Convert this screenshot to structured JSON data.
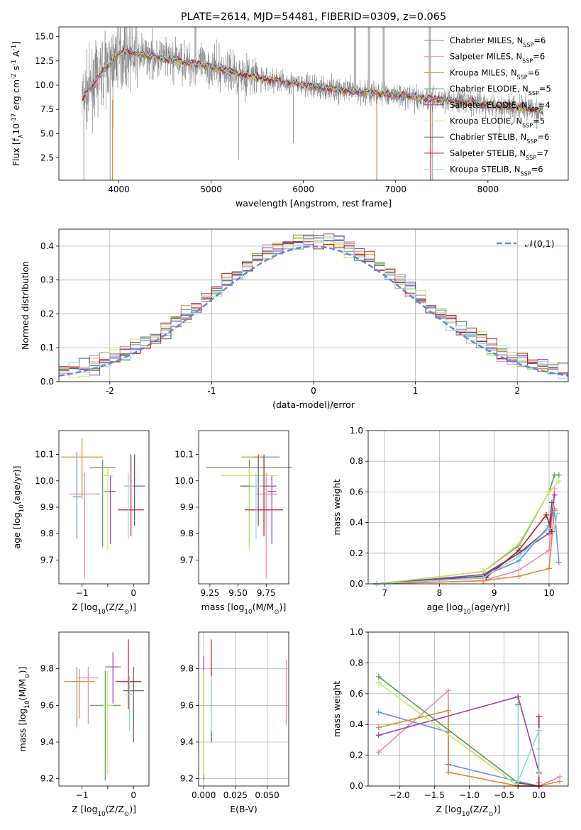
{
  "colors": {
    "Chabrier MILES": "#6a8fdc",
    "Salpeter MILES": "#e689b8",
    "Kroupa MILES": "#e08a2a",
    "Chabrier ELODIE": "#5a9a5a",
    "Salpeter ELODIE": "#9b3fb5",
    "Kroupa ELODIE": "#c8e65a",
    "Chabrier STELIB": "#5a5a5a",
    "Salpeter STELIB": "#c0141e",
    "Kroupa STELIB": "#8fd8e0",
    "gaussian": "#5b8ad8",
    "spectrum": "#808080"
  },
  "chart_data": [
    {
      "id": "spectrum",
      "type": "line",
      "title": "PLATE=2614, MJD=54481, FIBERID=0309, z=0.065",
      "xlabel": "wavelength [Angstrom, rest frame]",
      "ylabel": "Flux [f$_\\lambda$10$^{-17}$ erg cm$^{-2}$ s$^{-1}$ A$^{-1}$]",
      "xlim": [
        3350,
        8870
      ],
      "ylim": [
        0.2,
        16.0
      ],
      "xticks": [
        4000,
        5000,
        6000,
        7000,
        8000
      ],
      "yticks": [
        2.5,
        5.0,
        7.5,
        10.0,
        12.5,
        15.0
      ],
      "legend_position": "upper right",
      "legend": [
        {
          "name": "Chabrier MILES",
          "nssp": "6"
        },
        {
          "name": "Salpeter MILES",
          "nssp": "6"
        },
        {
          "name": "Kroupa MILES",
          "nssp": "6"
        },
        {
          "name": "Chabrier ELODIE",
          "nssp": "5"
        },
        {
          "name": "Salpeter ELODIE",
          "nssp": "4"
        },
        {
          "name": "Kroupa ELODIE",
          "nssp": "5"
        },
        {
          "name": "Chabrier STELIB",
          "nssp": "6"
        },
        {
          "name": "Salpeter STELIB",
          "nssp": "7"
        },
        {
          "name": "Kroupa STELIB",
          "nssp": "6"
        }
      ],
      "model_continuum": {
        "x": [
          3600,
          3700,
          3800,
          3900,
          4000,
          4100,
          4200,
          4400,
          4600,
          4800,
          5000,
          5200,
          5400,
          5600,
          5800,
          6000,
          6200,
          6400,
          6600,
          6800,
          7000,
          7200,
          7400,
          7600,
          7800,
          8000,
          8200,
          8400,
          8600
        ],
        "y": [
          8.6,
          9.8,
          11.2,
          12.2,
          13.3,
          13.4,
          13.2,
          12.9,
          12.6,
          12.2,
          11.9,
          11.4,
          11.0,
          10.6,
          10.3,
          10.0,
          9.7,
          9.5,
          9.3,
          9.2,
          9.0,
          8.8,
          8.6,
          8.4,
          8.2,
          8.0,
          7.8,
          7.6,
          7.3
        ]
      }
    },
    {
      "id": "residuals",
      "type": "histogram",
      "xlabel": "(data-model)/error",
      "ylabel": "Normed distribution",
      "xlim": [
        -2.5,
        2.5
      ],
      "ylim": [
        0.0,
        0.45
      ],
      "xticks": [
        -2,
        -1,
        0,
        1,
        2
      ],
      "yticks": [
        0.0,
        0.1,
        0.2,
        0.3,
        0.4
      ],
      "legend": "$\\mathcal{N}(0,1)$",
      "legend_position": "upper right",
      "grid": true,
      "bin_width": 0.1
    },
    {
      "id": "age_vs_Z",
      "type": "errorbar",
      "xlabel": "Z [log$_{10}$(Z/Z$_\\odot$)]",
      "ylabel": "age  [log$_{10}$(age/yr)]",
      "xlim": [
        -1.45,
        0.3
      ],
      "ylim": [
        9.61,
        10.19
      ],
      "xticks": [
        -1,
        -0.5,
        0
      ],
      "xticklabels": [
        "−1",
        "",
        "0"
      ],
      "yticks": [
        9.7,
        9.8,
        9.9,
        10.0,
        10.1
      ],
      "points": [
        {
          "model": "Chabrier MILES",
          "x": -1.1,
          "xerr": 0.08,
          "y": 9.94,
          "yerr": [
            0.16,
            0.17
          ]
        },
        {
          "model": "Salpeter MILES",
          "x": -0.95,
          "xerr": 0.3,
          "y": 9.95,
          "yerr": [
            0.32,
            0.08
          ]
        },
        {
          "model": "Kroupa MILES",
          "x": -1.0,
          "xerr": 0.4,
          "y": 10.09,
          "yerr": [
            0.16,
            0.07
          ]
        },
        {
          "model": "Chabrier ELODIE",
          "x": -0.6,
          "xerr": 0.25,
          "y": 10.05,
          "yerr": [
            0.3,
            0.03
          ]
        },
        {
          "model": "Salpeter ELODIE",
          "x": -0.45,
          "xerr": 0.1,
          "y": 9.96,
          "yerr": [
            0.2,
            0.06
          ]
        },
        {
          "model": "Kroupa ELODIE",
          "x": -0.5,
          "xerr": 0.1,
          "y": 10.02,
          "yerr": [
            0.28,
            0.03
          ]
        },
        {
          "model": "Chabrier STELIB",
          "x": 0.02,
          "xerr": 0.2,
          "y": 9.98,
          "yerr": [
            0.15,
            0.12
          ]
        },
        {
          "model": "Salpeter STELIB",
          "x": -0.05,
          "xerr": 0.25,
          "y": 9.89,
          "yerr": [
            0.1,
            0.21
          ]
        },
        {
          "model": "Kroupa STELIB",
          "x": -0.1,
          "xerr": 0.1,
          "y": 9.98,
          "yerr": [
            0.2,
            0.05
          ]
        }
      ]
    },
    {
      "id": "age_vs_mass",
      "type": "errorbar",
      "xlabel": "mass [log$_{10}$(M/M$_\\odot$)]",
      "xlim": [
        9.15,
        9.95
      ],
      "ylim": [
        9.61,
        10.19
      ],
      "xticks": [
        9.25,
        9.5,
        9.75
      ],
      "xticklabels": [
        "9.25",
        "9.50",
        "9.75"
      ],
      "yticks": [
        9.7,
        9.8,
        9.9,
        10.0,
        10.1
      ],
      "points": [
        {
          "model": "Chabrier MILES",
          "x": 9.75,
          "xerr": 0.12,
          "y": 10.09,
          "yerr": [
            0.0,
            0.0
          ]
        },
        {
          "model": "Salpeter MILES",
          "x": 9.75,
          "xerr": 0.1,
          "y": 9.95,
          "yerr": [
            0.32,
            0.08
          ]
        },
        {
          "model": "Kroupa MILES",
          "x": 9.63,
          "xerr": 0.1,
          "y": 10.09,
          "yerr": [
            0.0,
            0.0
          ]
        },
        {
          "model": "Chabrier ELODIE",
          "x": 9.6,
          "xerr": 0.38,
          "y": 10.05,
          "yerr": [
            0.3,
            0.03
          ]
        },
        {
          "model": "Salpeter ELODIE",
          "x": 9.8,
          "xerr": 0.04,
          "y": 9.96,
          "yerr": [
            0.2,
            0.06
          ]
        },
        {
          "model": "Kroupa ELODIE",
          "x": 9.6,
          "xerr": 0.25,
          "y": 10.02,
          "yerr": [
            0.28,
            0.03
          ]
        },
        {
          "model": "Chabrier STELIB",
          "x": 9.68,
          "xerr": 0.16,
          "y": 9.98,
          "yerr": [
            0.15,
            0.12
          ]
        },
        {
          "model": "Salpeter STELIB",
          "x": 9.73,
          "xerr": 0.17,
          "y": 9.89,
          "yerr": [
            0.1,
            0.21
          ]
        },
        {
          "model": "Kroupa STELIB",
          "x": 9.66,
          "xerr": 0.06,
          "y": 9.98,
          "yerr": [
            0.2,
            0.05
          ]
        }
      ]
    },
    {
      "id": "weight_vs_age",
      "type": "line",
      "xlabel": "age  [log$_{10}$(age/yr)]",
      "ylabel": "mass weight",
      "xlim": [
        6.7,
        10.35
      ],
      "ylim": [
        0.0,
        1.0
      ],
      "xticks": [
        7,
        8,
        9,
        10
      ],
      "yticks": [
        0.0,
        0.2,
        0.4,
        0.6,
        0.8,
        1.0
      ],
      "grid": true,
      "series": [
        {
          "name": "Chabrier MILES",
          "x": [
            6.85,
            8.8,
            9.45,
            10.0,
            10.1,
            10.18
          ],
          "y": [
            0.0,
            0.05,
            0.15,
            0.38,
            0.48,
            0.14
          ]
        },
        {
          "name": "Salpeter MILES",
          "x": [
            6.85,
            8.8,
            9.45,
            10.0,
            10.1
          ],
          "y": [
            0.0,
            0.02,
            0.09,
            0.22,
            0.62
          ]
        },
        {
          "name": "Kroupa MILES",
          "x": [
            6.85,
            8.8,
            9.45,
            10.0,
            10.1
          ],
          "y": [
            0.0,
            0.02,
            0.05,
            0.1,
            0.49
          ]
        },
        {
          "name": "Chabrier ELODIE",
          "x": [
            6.85,
            8.8,
            9.45,
            10.0,
            10.1,
            10.18
          ],
          "y": [
            0.0,
            0.08,
            0.25,
            0.6,
            0.71,
            0.71
          ]
        },
        {
          "name": "Salpeter ELODIE",
          "x": [
            6.85,
            8.8,
            9.45,
            10.0,
            10.1
          ],
          "y": [
            0.0,
            0.06,
            0.2,
            0.33,
            0.58
          ]
        },
        {
          "name": "Kroupa ELODIE",
          "x": [
            6.85,
            8.8,
            9.45,
            10.0,
            10.18
          ],
          "y": [
            0.0,
            0.08,
            0.26,
            0.6,
            0.67
          ]
        },
        {
          "name": "Chabrier STELIB",
          "x": [
            6.85,
            8.8,
            9.45,
            10.0,
            10.05
          ],
          "y": [
            0.0,
            0.05,
            0.2,
            0.36,
            0.53
          ]
        },
        {
          "name": "Salpeter STELIB",
          "x": [
            6.85,
            8.85,
            9.45,
            9.95,
            10.05
          ],
          "y": [
            0.0,
            0.04,
            0.22,
            0.45,
            0.34
          ]
        },
        {
          "name": "Kroupa STELIB",
          "x": [
            6.85,
            8.8,
            9.45,
            10.0,
            10.1,
            10.15
          ],
          "y": [
            0.0,
            0.04,
            0.18,
            0.36,
            0.36,
            0.46
          ]
        }
      ]
    },
    {
      "id": "mass_vs_Z",
      "type": "errorbar",
      "xlabel": "Z [log$_{10}$(Z/Z$_\\odot$)]",
      "ylabel": "mass [log$_{10}$(M/M$_\\odot$)]",
      "xlim": [
        -1.45,
        0.3
      ],
      "ylim": [
        9.16,
        10.0
      ],
      "xticks": [
        -1,
        -0.5,
        0
      ],
      "xticklabels": [
        "−1",
        "",
        "0"
      ],
      "yticks": [
        9.2,
        9.4,
        9.6,
        9.8
      ],
      "points": [
        {
          "model": "Chabrier MILES",
          "x": -1.1,
          "xerr": 0.1,
          "y": 9.73,
          "yerr": [
            0.25,
            0.08
          ]
        },
        {
          "model": "Salpeter MILES",
          "x": -0.88,
          "xerr": 0.2,
          "y": 9.75,
          "yerr": [
            0.25,
            0.06
          ]
        },
        {
          "model": "Kroupa MILES",
          "x": -1.05,
          "xerr": 0.3,
          "y": 9.73,
          "yerr": [
            0.2,
            0.07
          ]
        },
        {
          "model": "Chabrier ELODIE",
          "x": -0.55,
          "xerr": 0.3,
          "y": 9.6,
          "yerr": [
            0.41,
            0.19
          ]
        },
        {
          "model": "Salpeter ELODIE",
          "x": -0.4,
          "xerr": 0.15,
          "y": 9.81,
          "yerr": [
            0.2,
            0.08
          ]
        },
        {
          "model": "Kroupa ELODIE",
          "x": -0.5,
          "xerr": 0.1,
          "y": 9.6,
          "yerr": [
            0.38,
            0.19
          ]
        },
        {
          "model": "Chabrier STELIB",
          "x": 0.0,
          "xerr": 0.2,
          "y": 9.68,
          "yerr": [
            0.28,
            0.13
          ]
        },
        {
          "model": "Salpeter STELIB",
          "x": -0.1,
          "xerr": 0.25,
          "y": 9.73,
          "yerr": [
            0.15,
            0.23
          ]
        },
        {
          "model": "Kroupa STELIB",
          "x": -0.08,
          "xerr": 0.1,
          "y": 9.66,
          "yerr": [
            0.2,
            0.1
          ]
        }
      ]
    },
    {
      "id": "mass_vs_EBV",
      "type": "errorbar",
      "xlabel": "E(B-V)",
      "xlim": [
        -0.004,
        0.067
      ],
      "ylim": [
        9.16,
        10.0
      ],
      "xticks": [
        0.0,
        0.025,
        0.05
      ],
      "xticklabels": [
        "0.000",
        "0.025",
        "0.050"
      ],
      "yticks": [
        9.2,
        9.4,
        9.6,
        9.8
      ],
      "points": [
        {
          "model": "Chabrier MILES",
          "x": 0.0,
          "y": 9.73,
          "yerr": [
            0.25,
            0.08
          ]
        },
        {
          "model": "Salpeter MILES",
          "x": 0.065,
          "y": 9.67,
          "yerr": [
            0.18,
            0.18
          ]
        },
        {
          "model": "Kroupa MILES",
          "x": 0.0,
          "y": 9.73,
          "yerr": [
            0.2,
            0.07
          ]
        },
        {
          "model": "Chabrier ELODIE",
          "x": 0.0,
          "y": 9.6,
          "yerr": [
            0.41,
            0.19
          ]
        },
        {
          "model": "Salpeter ELODIE",
          "x": 0.0,
          "y": 9.81,
          "yerr": [
            0.2,
            0.06
          ]
        },
        {
          "model": "Kroupa ELODIE",
          "x": 0.0,
          "y": 9.6,
          "yerr": [
            0.38,
            0.19
          ]
        },
        {
          "model": "Chabrier STELIB",
          "x": 0.006,
          "y": 9.68,
          "yerr": [
            0.28,
            0.13
          ]
        },
        {
          "model": "Salpeter STELIB",
          "x": 0.006,
          "y": 9.73,
          "yerr": [
            0.15,
            0.23
          ]
        },
        {
          "model": "Kroupa STELIB",
          "x": 0.006,
          "y": 9.66,
          "yerr": [
            0.2,
            0.1
          ]
        }
      ]
    },
    {
      "id": "weight_vs_Z",
      "type": "line",
      "xlabel": "Z [log$_{10}$(Z/Z$_\\odot$)]",
      "ylabel": "mass weight",
      "xlim": [
        -2.45,
        0.42
      ],
      "ylim": [
        0.0,
        1.0
      ],
      "xticks": [
        -2.0,
        -1.5,
        -1.0,
        -0.5,
        0.0
      ],
      "xticklabels": [
        "−2.0",
        "−1.5",
        "−1.0",
        "−0.5",
        "0.0"
      ],
      "yticks": [
        0.0,
        0.2,
        0.4,
        0.6,
        0.8,
        1.0
      ],
      "grid": true,
      "series": [
        {
          "name": "Chabrier MILES",
          "x": [
            -2.3,
            -1.3,
            -1.3,
            -0.3,
            0.0,
            0.0
          ],
          "y": [
            0.48,
            0.35,
            0.14,
            0.03,
            0.0,
            0.02
          ]
        },
        {
          "name": "Salpeter MILES",
          "x": [
            -2.3,
            -1.3,
            -1.3,
            -0.3,
            0.0,
            0.3
          ],
          "y": [
            0.22,
            0.62,
            0.09,
            0.0,
            0.0,
            0.06
          ]
        },
        {
          "name": "Kroupa MILES",
          "x": [
            -2.3,
            -1.3,
            -1.3,
            -0.3,
            0.0,
            0.3
          ],
          "y": [
            0.38,
            0.49,
            0.09,
            0.0,
            0.0,
            0.03
          ]
        },
        {
          "name": "Chabrier ELODIE",
          "x": [
            -2.3,
            -0.3,
            0.0
          ],
          "y": [
            0.71,
            0.02,
            0.0
          ]
        },
        {
          "name": "Salpeter ELODIE",
          "x": [
            -2.3,
            -0.3,
            -0.3,
            0.0
          ],
          "y": [
            0.33,
            0.58,
            0.58,
            0.09
          ]
        },
        {
          "name": "Kroupa ELODIE",
          "x": [
            -2.3,
            -0.3,
            0.0,
            0.0
          ],
          "y": [
            0.67,
            0.0,
            0.0,
            0.24
          ]
        },
        {
          "name": "Chabrier STELIB",
          "x": [
            -0.3,
            -0.3,
            0.0,
            0.0
          ],
          "y": [
            0.53,
            0.02,
            0.0,
            0.36
          ]
        },
        {
          "name": "Salpeter STELIB",
          "x": [
            -0.3,
            0.0,
            0.0,
            0.0
          ],
          "y": [
            0.0,
            0.0,
            0.45,
            0.0
          ]
        },
        {
          "name": "Kroupa STELIB",
          "x": [
            -0.3,
            -0.3,
            0.0,
            0.0
          ],
          "y": [
            0.52,
            0.03,
            0.36,
            0.08
          ]
        }
      ]
    }
  ]
}
